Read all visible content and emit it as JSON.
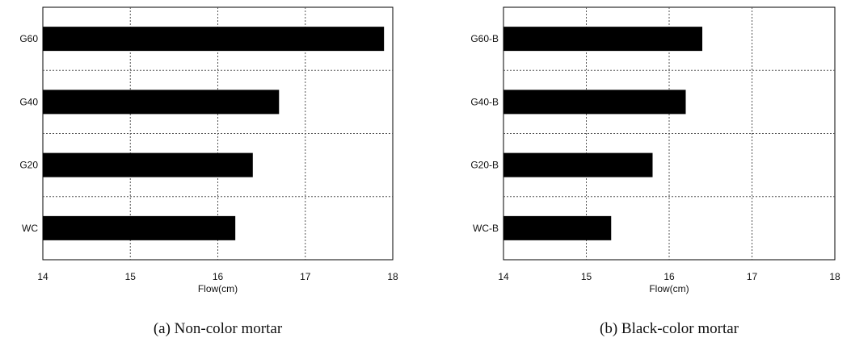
{
  "chart_data": [
    {
      "type": "bar",
      "orientation": "horizontal",
      "categories": [
        "G60",
        "G40",
        "G20",
        "WC"
      ],
      "values": [
        17.9,
        16.7,
        16.4,
        16.2
      ],
      "xlabel": "Flow(cm)",
      "xlim": [
        14,
        18
      ],
      "xticks": [
        14,
        15,
        16,
        17,
        18
      ],
      "grid": true,
      "bar_color": "#000000",
      "caption": "(a) Non-color mortar"
    },
    {
      "type": "bar",
      "orientation": "horizontal",
      "categories": [
        "G60-B",
        "G40-B",
        "G20-B",
        "WC-B"
      ],
      "values": [
        16.4,
        16.2,
        15.8,
        15.3
      ],
      "xlabel": "Flow(cm)",
      "xlim": [
        14,
        18
      ],
      "xticks": [
        14,
        15,
        16,
        17,
        18
      ],
      "grid": true,
      "bar_color": "#000000",
      "caption": "(b) Black-color mortar"
    }
  ]
}
